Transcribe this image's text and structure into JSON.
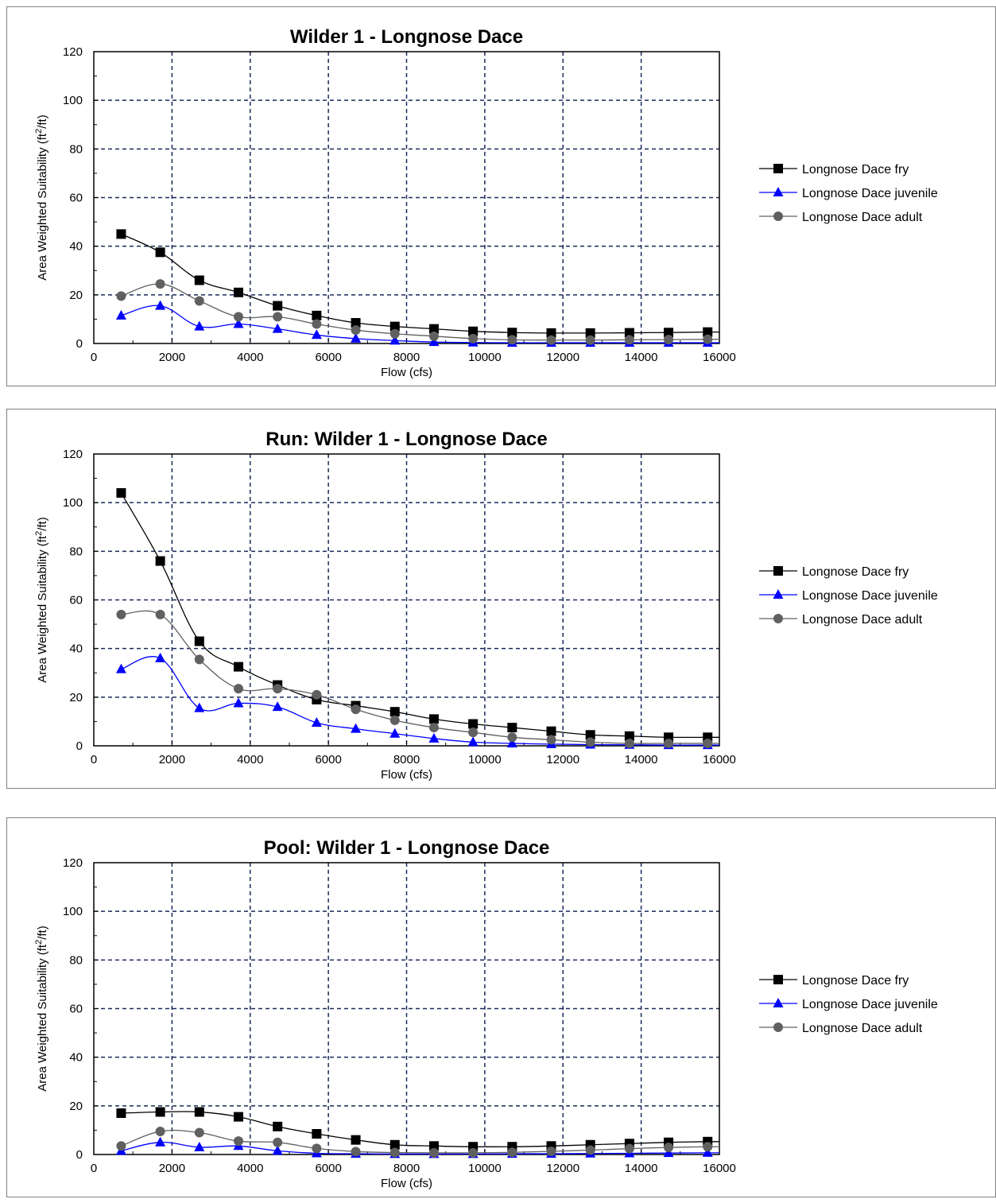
{
  "chart_data": [
    {
      "type": "line",
      "title": "Wilder 1 - Longnose Dace",
      "xlabel": "Flow (cfs)",
      "ylabel": "Area Weighted Suitability (ft²/ft)",
      "xlim": [
        0,
        16000
      ],
      "ylim": [
        0,
        120
      ],
      "xticks": [
        0,
        2000,
        4000,
        6000,
        8000,
        10000,
        12000,
        14000,
        16000
      ],
      "yticks": [
        0,
        20,
        40,
        60,
        80,
        100,
        120
      ],
      "grid": true,
      "legend_position": "right",
      "x": [
        700,
        1700,
        2700,
        3700,
        4700,
        5700,
        6700,
        7700,
        8700,
        9700,
        10700,
        11700,
        12700,
        13700,
        14700,
        15700
      ],
      "series": [
        {
          "name": "Longnose Dace fry",
          "color": "#000000",
          "marker": "square",
          "values": [
            45,
            37.5,
            26,
            21,
            15.5,
            11.5,
            8.5,
            7,
            6,
            5,
            4.5,
            4.3,
            4.3,
            4.4,
            4.5,
            4.7
          ]
        },
        {
          "name": "Longnose Dace juvenile",
          "color": "#0000ff",
          "marker": "triangle",
          "values": [
            11.5,
            15.5,
            7,
            8,
            6,
            3.5,
            2,
            1.2,
            0.6,
            0.4,
            0.3,
            0.3,
            0.3,
            0.3,
            0.3,
            0.3
          ]
        },
        {
          "name": "Longnose Dace adult",
          "color": "#606060",
          "marker": "circle",
          "values": [
            19.5,
            24.5,
            17.5,
            11,
            11,
            8,
            5.5,
            4,
            3,
            2,
            1.5,
            1.4,
            1.4,
            1.5,
            1.6,
            1.7
          ]
        }
      ]
    },
    {
      "type": "line",
      "title": "Run: Wilder 1 - Longnose Dace",
      "xlabel": "Flow (cfs)",
      "ylabel": "Area Weighted Suitability (ft²/ft)",
      "xlim": [
        0,
        16000
      ],
      "ylim": [
        0,
        120
      ],
      "xticks": [
        0,
        2000,
        4000,
        6000,
        8000,
        10000,
        12000,
        14000,
        16000
      ],
      "yticks": [
        0,
        20,
        40,
        60,
        80,
        100,
        120
      ],
      "grid": true,
      "legend_position": "right",
      "x": [
        700,
        1700,
        2700,
        3700,
        4700,
        5700,
        6700,
        7700,
        8700,
        9700,
        10700,
        11700,
        12700,
        13700,
        14700,
        15700
      ],
      "series": [
        {
          "name": "Longnose Dace fry",
          "color": "#000000",
          "marker": "square",
          "values": [
            104,
            76,
            43,
            32.5,
            25,
            19,
            16.5,
            14,
            11,
            9,
            7.5,
            6,
            4.5,
            4,
            3.5,
            3.5
          ]
        },
        {
          "name": "Longnose Dace juvenile",
          "color": "#0000ff",
          "marker": "triangle",
          "values": [
            31.5,
            36,
            15.5,
            17.5,
            16,
            9.5,
            7,
            5,
            3,
            1.5,
            1,
            0.7,
            0.5,
            0.4,
            0.3,
            0.3
          ]
        },
        {
          "name": "Longnose Dace adult",
          "color": "#606060",
          "marker": "circle",
          "values": [
            54,
            54,
            35.5,
            23.5,
            23.5,
            21,
            15,
            10.5,
            7.5,
            5.5,
            3.5,
            2.5,
            1.5,
            1,
            1,
            1
          ]
        }
      ]
    },
    {
      "type": "line",
      "title": "Pool: Wilder 1 - Longnose Dace",
      "xlabel": "Flow (cfs)",
      "ylabel": "Area Weighted Suitability (ft²/ft)",
      "xlim": [
        0,
        16000
      ],
      "ylim": [
        0,
        120
      ],
      "xticks": [
        0,
        2000,
        4000,
        6000,
        8000,
        10000,
        12000,
        14000,
        16000
      ],
      "yticks": [
        0,
        20,
        40,
        60,
        80,
        100,
        120
      ],
      "grid": true,
      "legend_position": "right",
      "x": [
        700,
        1700,
        2700,
        3700,
        4700,
        5700,
        6700,
        7700,
        8700,
        9700,
        10700,
        11700,
        12700,
        13700,
        14700,
        15700
      ],
      "series": [
        {
          "name": "Longnose Dace fry",
          "color": "#000000",
          "marker": "square",
          "values": [
            17,
            17.5,
            17.5,
            15.5,
            11.5,
            8.5,
            6,
            4,
            3.5,
            3.2,
            3.2,
            3.5,
            4,
            4.5,
            5,
            5.3
          ]
        },
        {
          "name": "Longnose Dace juvenile",
          "color": "#0000ff",
          "marker": "triangle",
          "values": [
            1.5,
            5,
            3,
            3.5,
            1.5,
            0.5,
            0.3,
            0.2,
            0.2,
            0.2,
            0.3,
            0.3,
            0.4,
            0.5,
            0.6,
            0.7
          ]
        },
        {
          "name": "Longnose Dace adult",
          "color": "#606060",
          "marker": "circle",
          "values": [
            3.5,
            9.5,
            9,
            5.5,
            5,
            2.5,
            1.2,
            0.8,
            0.7,
            0.7,
            0.9,
            1.3,
            1.8,
            2.4,
            2.9,
            3.2
          ]
        }
      ]
    }
  ]
}
